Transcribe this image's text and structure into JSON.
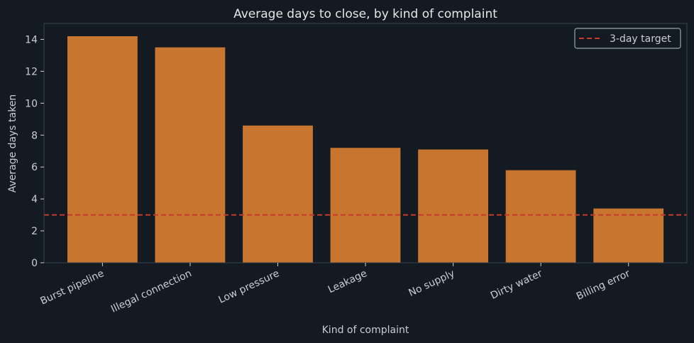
{
  "chart_data": {
    "type": "bar",
    "title": "Average days to close, by kind of complaint",
    "xlabel": "Kind of complaint",
    "ylabel": "Average days taken",
    "categories": [
      "Burst pipeline",
      "Illegal connection",
      "Low pressure",
      "Leakage",
      "No supply",
      "Dirty water",
      "Billing error"
    ],
    "values": [
      14.2,
      13.5,
      8.6,
      7.2,
      7.1,
      5.8,
      3.4
    ],
    "ylim": [
      0,
      15
    ],
    "yticks": [
      0,
      2,
      4,
      6,
      8,
      10,
      12,
      14
    ],
    "reference_line": {
      "label": "3-day target",
      "value": 3
    },
    "legend": {
      "placement": "top-right"
    },
    "grid": false,
    "colors": {
      "bar": "#c87530",
      "target": "#c63a2e",
      "background": "#131a22",
      "axes": "#3a444f"
    }
  }
}
